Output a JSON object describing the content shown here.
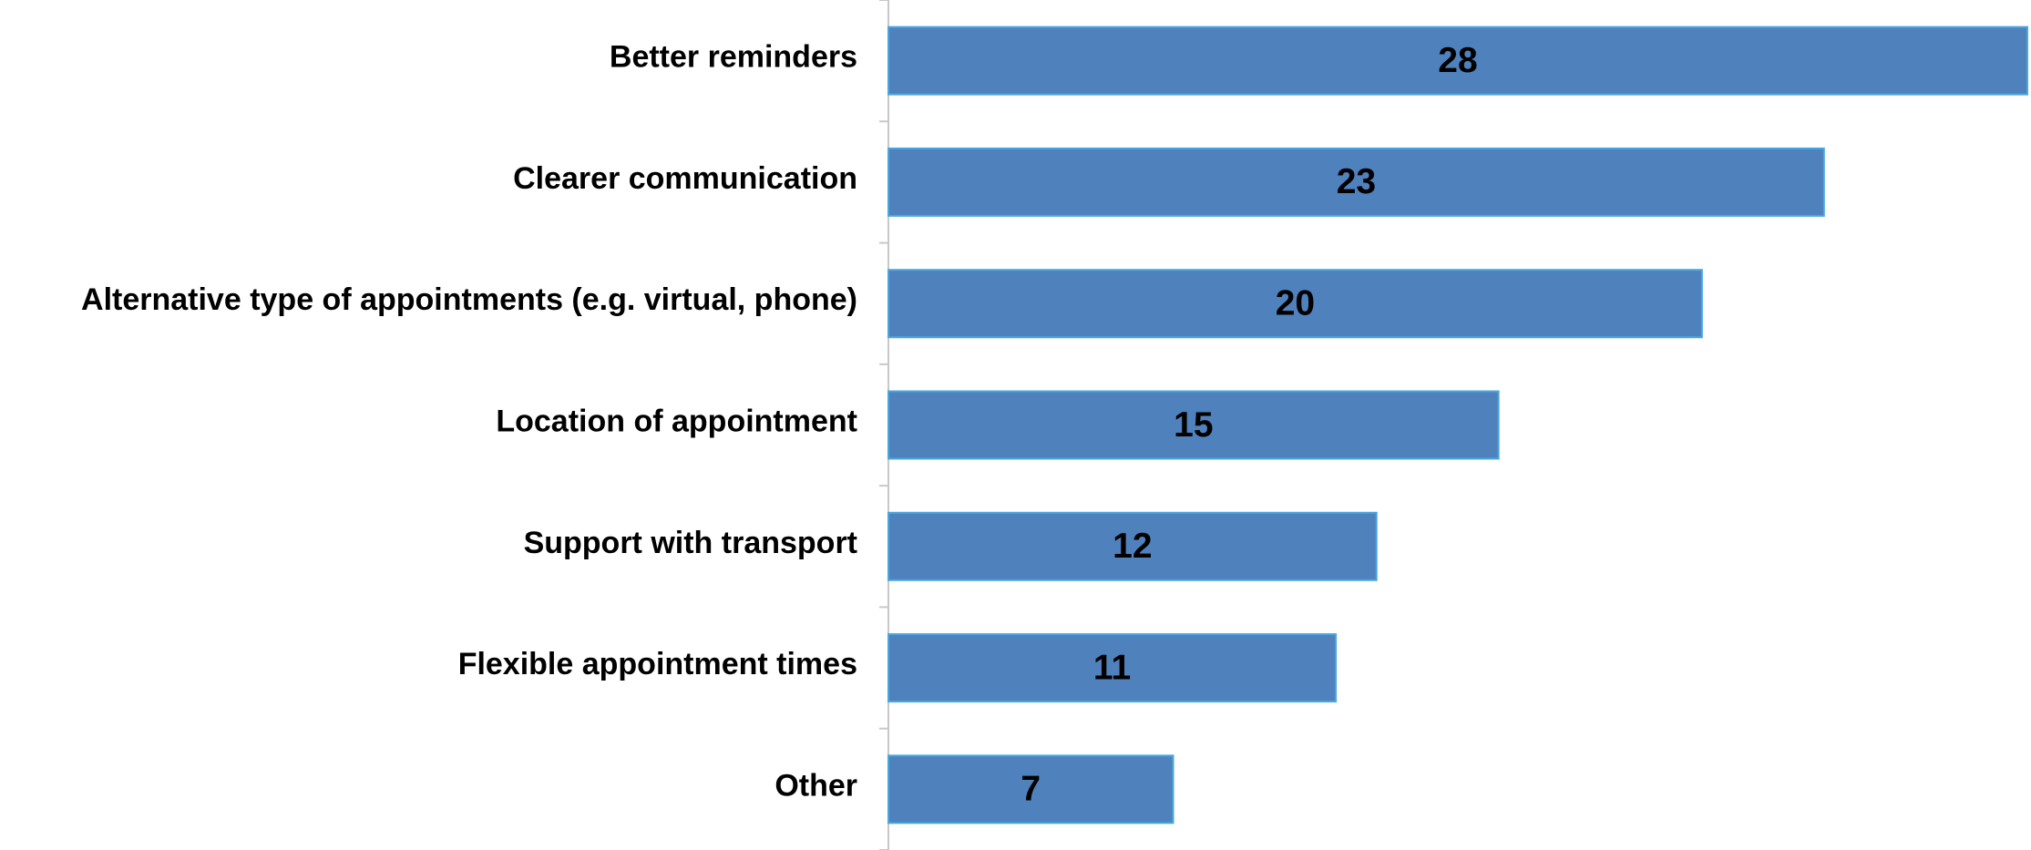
{
  "chart_data": {
    "type": "hbar",
    "categories": [
      "Better reminders",
      "Clearer communication",
      "Alternative type of appointments (e.g. virtual, phone)",
      "Location of appointment",
      "Support with transport",
      "Flexible appointment times",
      "Other"
    ],
    "values": [
      28,
      23,
      20,
      15,
      12,
      11,
      7
    ],
    "color": "#4f81bd"
  }
}
